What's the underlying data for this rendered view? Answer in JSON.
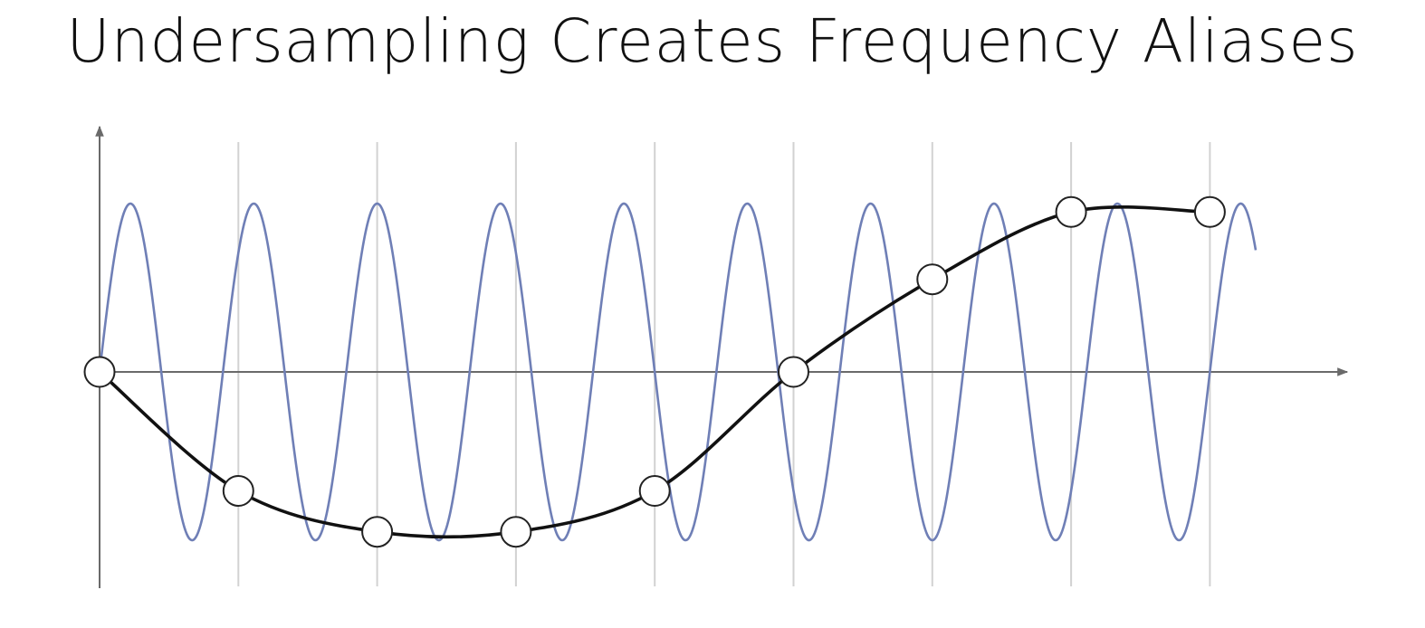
{
  "title": "Undersampling Creates Frequency Aliases",
  "chart_data": {
    "type": "line",
    "title": "Undersampling Creates Frequency Aliases",
    "xlabel": "",
    "ylabel": "",
    "x_range": [
      0,
      8.33
    ],
    "y_range": [
      -1,
      1
    ],
    "grid": "vertical lines at sample positions",
    "series": [
      {
        "role": "high-frequency signal",
        "color": "#6f7fb6",
        "frequency_cycles_per_sample": 1.125,
        "amplitude": 1
      },
      {
        "role": "aliased reconstruction",
        "color": "#111111",
        "frequency_cycles_per_sample": 0.125,
        "amplitude": 1,
        "inverted": true
      }
    ],
    "samples": {
      "x": [
        0,
        1,
        2,
        3,
        4,
        5,
        6,
        7,
        8
      ],
      "y": [
        0,
        -0.707,
        -0.95,
        -0.95,
        -0.707,
        0,
        0.55,
        0.95,
        0.95
      ]
    }
  }
}
